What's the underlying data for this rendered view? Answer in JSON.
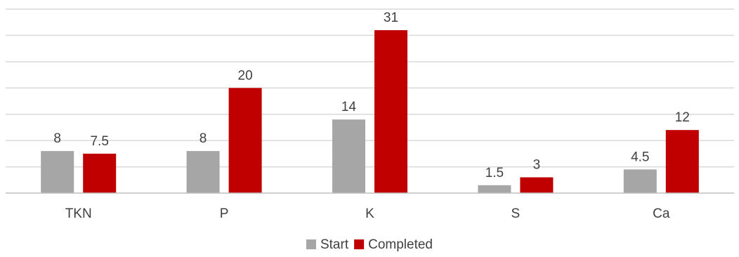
{
  "chart_data": {
    "type": "bar",
    "title": "",
    "xlabel": "",
    "ylabel": "",
    "categories": [
      "TKN",
      "P",
      "K",
      "S",
      "Ca"
    ],
    "series": [
      {
        "name": "Start",
        "values": [
          8,
          8,
          14,
          1.5,
          4.5
        ],
        "value_labels": [
          "8",
          "8",
          "14",
          "1.5",
          "4.5"
        ],
        "color": "#a6a6a6"
      },
      {
        "name": "Completed",
        "values": [
          7.5,
          20,
          31,
          3,
          12
        ],
        "value_labels": [
          "7.5",
          "20",
          "31",
          "3",
          "12"
        ],
        "color": "#c00000"
      }
    ],
    "ylim": [
      0,
      35
    ],
    "y_gridline_step": 5,
    "y_tick_labels_shown": false,
    "grid": true,
    "legend_position": "bottom"
  }
}
